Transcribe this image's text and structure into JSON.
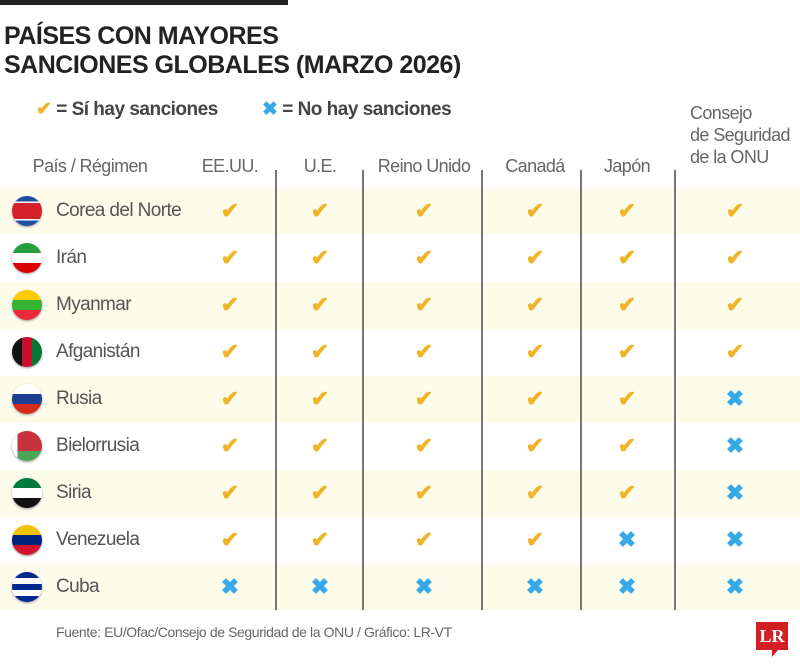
{
  "title_line1": "PAÍSES CON MAYORES",
  "title_line2": "SANCIONES GLOBALES (MARZO 2026)",
  "legend": {
    "yes_symbol": "✔",
    "yes_label": "= Sí hay sanciones",
    "no_symbol": "✖",
    "no_label": "= No hay sanciones",
    "yes_color": "#f0b429",
    "no_color": "#38a9e8"
  },
  "chart_data": {
    "type": "table",
    "title": "PAÍSES CON MAYORES SANCIONES GLOBALES (MARZO 2026)",
    "columns": [
      "País / Régimen",
      "EE.UU.",
      "U.E.",
      "Reino Unido",
      "Canadá",
      "Japón",
      "Consejo de Seguridad de la ONU"
    ],
    "onu_lines": [
      "Consejo",
      "de Seguridad",
      "de la ONU"
    ],
    "rows": [
      {
        "country": "Corea del Norte",
        "values": [
          true,
          true,
          true,
          true,
          true,
          true
        ]
      },
      {
        "country": "Irán",
        "values": [
          true,
          true,
          true,
          true,
          true,
          true
        ]
      },
      {
        "country": "Myanmar",
        "values": [
          true,
          true,
          true,
          true,
          true,
          true
        ]
      },
      {
        "country": "Afganistán",
        "values": [
          true,
          true,
          true,
          true,
          true,
          true
        ]
      },
      {
        "country": "Rusia",
        "values": [
          true,
          true,
          true,
          true,
          true,
          false
        ]
      },
      {
        "country": "Bielorrusia",
        "values": [
          true,
          true,
          true,
          true,
          true,
          false
        ]
      },
      {
        "country": "Siria",
        "values": [
          true,
          true,
          true,
          true,
          true,
          false
        ]
      },
      {
        "country": "Venezuela",
        "values": [
          true,
          true,
          true,
          true,
          false,
          false
        ]
      },
      {
        "country": "Cuba",
        "values": [
          false,
          false,
          false,
          false,
          false,
          false
        ]
      }
    ]
  },
  "source": "Fuente: EU/Ofac/Consejo de Seguridad de la ONU / Gráfico: LR-VT",
  "logo": "LR"
}
